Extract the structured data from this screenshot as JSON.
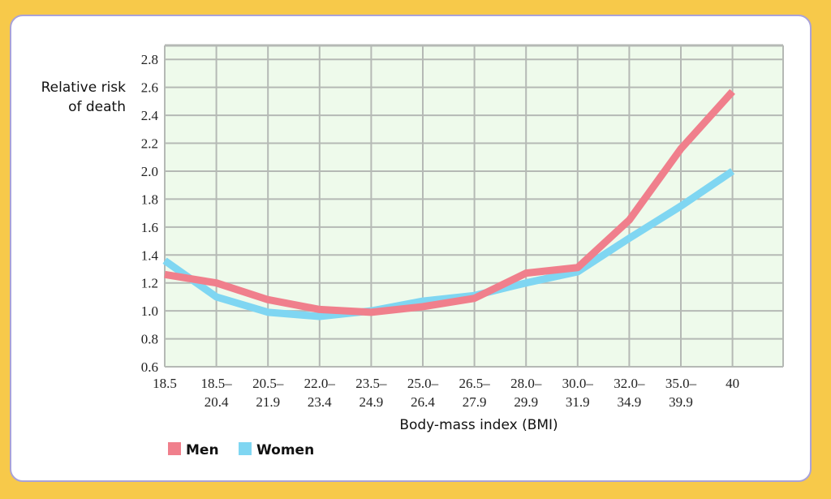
{
  "chart_data": {
    "type": "line",
    "ylabel_lines": [
      "Relative risk",
      "of death"
    ],
    "xlabel": "Body-mass index (BMI)",
    "categories": [
      [
        "18.5"
      ],
      [
        "18.5–",
        "20.4"
      ],
      [
        "20.5–",
        "21.9"
      ],
      [
        "22.0–",
        "23.4"
      ],
      [
        "23.5–",
        "24.9"
      ],
      [
        "25.0–",
        "26.4"
      ],
      [
        "26.5–",
        "27.9"
      ],
      [
        "28.0–",
        "29.9"
      ],
      [
        "30.0–",
        "31.9"
      ],
      [
        "32.0–",
        "34.9"
      ],
      [
        "35.0–",
        "39.9"
      ],
      [
        "40"
      ]
    ],
    "ylim": [
      0.6,
      2.9
    ],
    "yticks": [
      "0.6",
      "0.8",
      "1.0",
      "1.2",
      "1.4",
      "1.6",
      "1.8",
      "2.0",
      "2.2",
      "2.4",
      "2.6",
      "2.8"
    ],
    "grid": true,
    "legend_position": "bottom-left",
    "series": [
      {
        "name": "Men",
        "color": "#f07f8c",
        "values": [
          1.26,
          1.2,
          1.08,
          1.01,
          0.99,
          1.03,
          1.09,
          1.27,
          1.31,
          1.65,
          2.16,
          2.57
        ]
      },
      {
        "name": "Women",
        "color": "#7fd6f2",
        "values": [
          1.36,
          1.1,
          0.99,
          0.96,
          1.0,
          1.07,
          1.11,
          1.2,
          1.28,
          1.52,
          1.75,
          2.0
        ]
      }
    ],
    "plot_background": "#eefaeb",
    "grid_color": "#b5b9b5"
  }
}
